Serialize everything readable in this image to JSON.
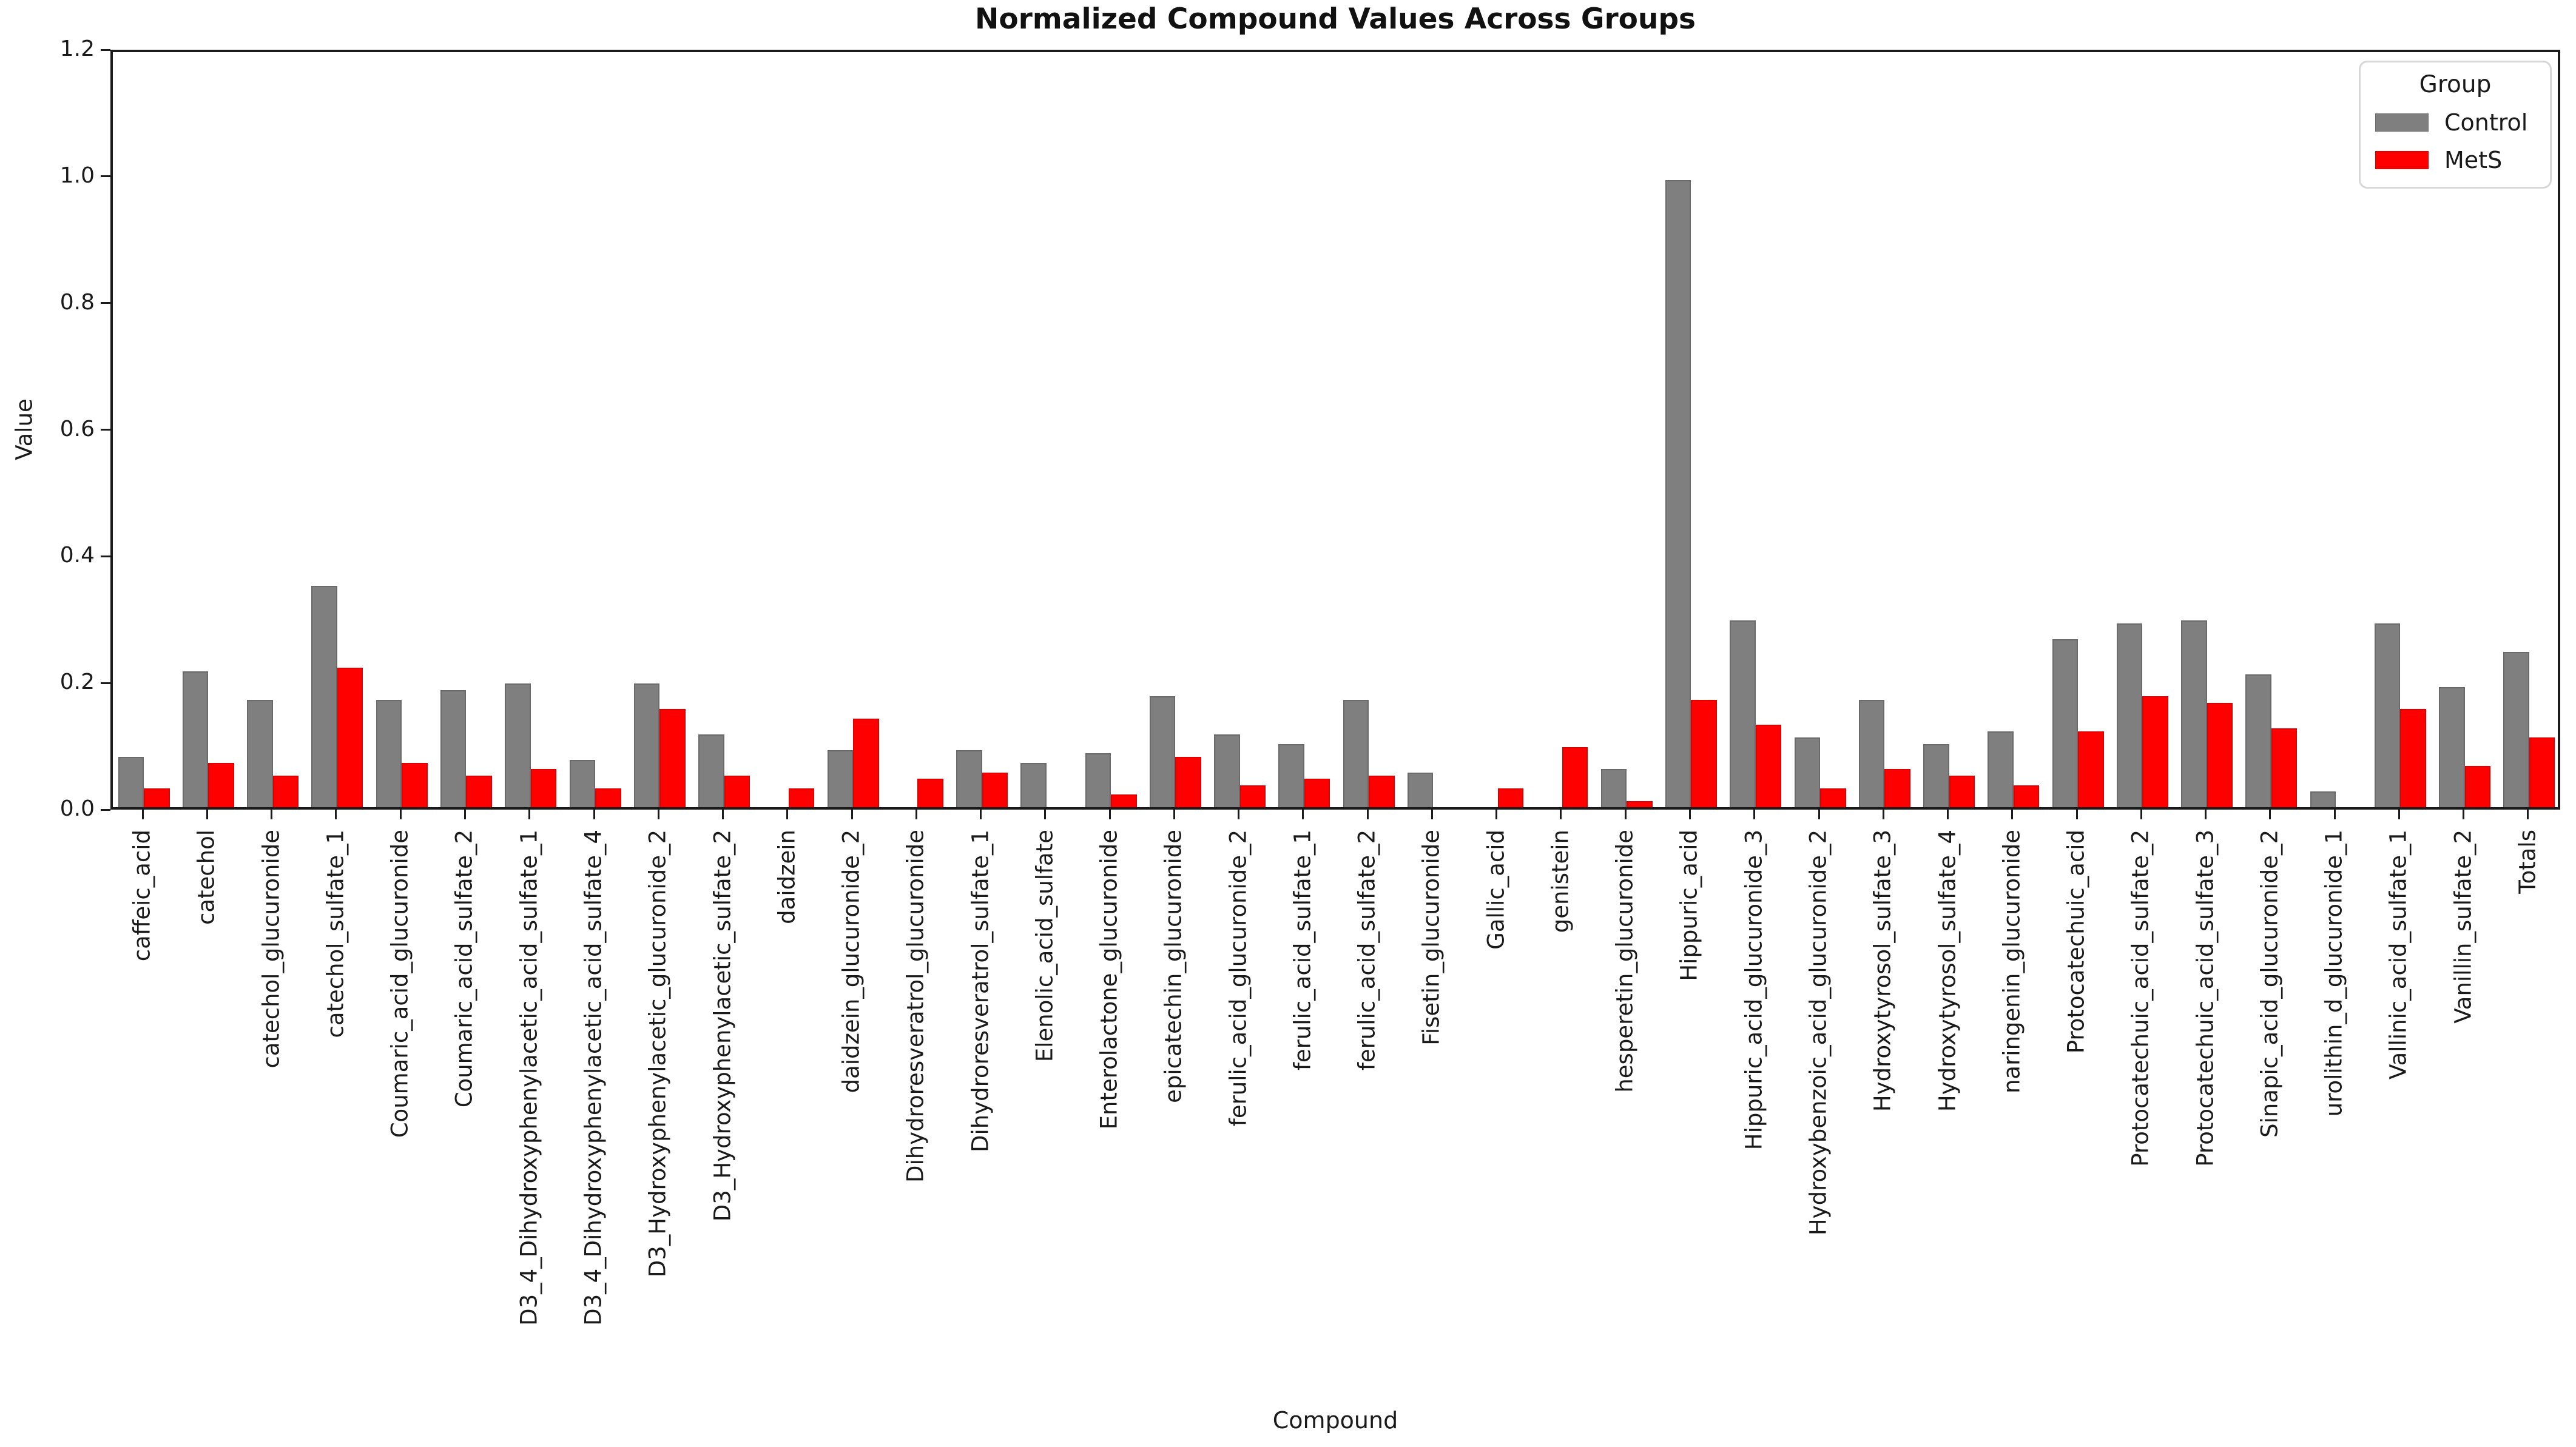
{
  "chart_data": {
    "type": "bar",
    "title": "Normalized Compound Values Across Groups",
    "xlabel": "Compound",
    "ylabel": "Value",
    "ylim": [
      0.0,
      1.2
    ],
    "yticks": [
      "0.0",
      "0.2",
      "0.4",
      "0.6",
      "0.8",
      "1.0",
      "1.2"
    ],
    "grid": false,
    "legend": {
      "title": "Group",
      "position": "upper right",
      "entries": [
        {
          "label": "Control",
          "color": "#7f7f7f"
        },
        {
          "label": "MetS",
          "color": "#ff0000"
        }
      ]
    },
    "categories": [
      "caffeic_acid",
      "catechol",
      "catechol_glucuronide",
      "catechol_sulfate_1",
      "Coumaric_acid_glucuronide",
      "Coumaric_acid_sulfate_2",
      "D3_4_Dihydroxyphenylacetic_acid_sulfate_1",
      "D3_4_Dihydroxyphenylacetic_acid_sulfate_4",
      "D3_Hydroxyphenylacetic_glucuronide_2",
      "D3_Hydroxyphenylacetic_sulfate_2",
      "daidzein",
      "daidzein_glucuronide_2",
      "Dihydroresveratrol_glucuronide",
      "Dihydroresveratrol_sulfate_1",
      "Elenolic_acid_sulfate",
      "Enterolactone_glucuronide",
      "epicatechin_glucuronide",
      "ferulic_acid_glucuronide_2",
      "ferulic_acid_sulfate_1",
      "ferulic_acid_sulfate_2",
      "Fisetin_glucuronide",
      "Gallic_acid",
      "genistein",
      "hesperetin_glucuronide",
      "Hippuric_acid",
      "Hippuric_acid_glucuronide_3",
      "Hydroxybenzoic_acid_glucuronide_2",
      "Hydroxytyrosol_sulfate_3",
      "Hydroxytyrosol_sulfate_4",
      "naringenin_glucuronide",
      "Protocatechuic_acid",
      "Protocatechuic_acid_sulfate_2",
      "Protocatechuic_acid_sulfate_3",
      "Sinapic_acid_glucuronide_2",
      "urolithin_d_glucuronide_1",
      "Vallinic_acid_sulfate_1",
      "Vanillin_sulfate_2",
      "Totals"
    ],
    "series": [
      {
        "name": "Control",
        "color": "#7f7f7f",
        "values": [
          0.08,
          0.215,
          0.17,
          0.35,
          0.17,
          0.185,
          0.195,
          0.075,
          0.195,
          0.115,
          0,
          0.09,
          0,
          0.09,
          0.07,
          0.085,
          0.175,
          0.115,
          0.1,
          0.17,
          0.055,
          0,
          0,
          0.06,
          0.99,
          0.295,
          0.11,
          0.17,
          0.1,
          0.12,
          0.265,
          0.29,
          0.295,
          0.21,
          0.025,
          0.29,
          0.19,
          0.245
        ]
      },
      {
        "name": "MetS",
        "color": "#ff0000",
        "values": [
          0.03,
          0.07,
          0.05,
          0.22,
          0.07,
          0.05,
          0.06,
          0.03,
          0.155,
          0.05,
          0.03,
          0.14,
          0.045,
          0.055,
          0,
          0.02,
          0.08,
          0.035,
          0.045,
          0.05,
          0,
          0.03,
          0.095,
          0.01,
          0.17,
          0.13,
          0.03,
          0.06,
          0.05,
          0.035,
          0.12,
          0.175,
          0.165,
          0.125,
          0,
          0.155,
          0.065,
          0.11
        ]
      }
    ]
  }
}
